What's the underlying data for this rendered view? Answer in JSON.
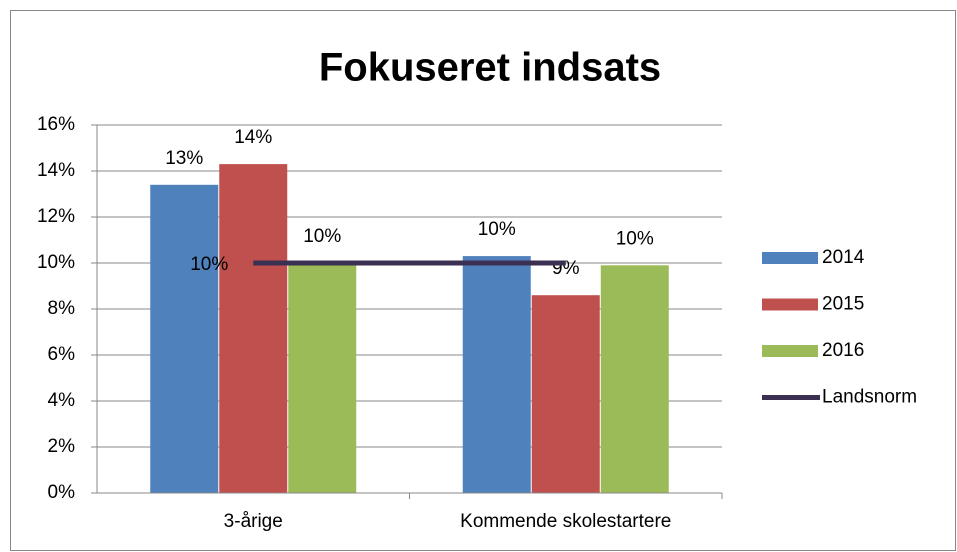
{
  "chart_data": {
    "type": "bar",
    "title": "Fokuseret indsats",
    "categories": [
      "3-årige",
      "Kommende skolestartere"
    ],
    "series": [
      {
        "name": "2014",
        "color": "#4f81bd",
        "values": [
          13.4,
          10.3
        ],
        "value_labels": [
          "13%",
          "10%"
        ]
      },
      {
        "name": "2015",
        "color": "#c0504d",
        "values": [
          14.3,
          8.6
        ],
        "value_labels": [
          "14%",
          "9%"
        ]
      },
      {
        "name": "2016",
        "color": "#9bbb59",
        "values": [
          10.0,
          9.9
        ],
        "value_labels": [
          "10%",
          "10%"
        ]
      },
      {
        "name": "Landsnorm",
        "type": "line",
        "color": "#3b2f52",
        "values": [
          10,
          10
        ],
        "value_labels": [
          "10%",
          null
        ]
      }
    ],
    "ylim": [
      0,
      16
    ],
    "yticks": [
      {
        "value": 0,
        "label": "0%"
      },
      {
        "value": 2,
        "label": "2%"
      },
      {
        "value": 4,
        "label": "4%"
      },
      {
        "value": 6,
        "label": "6%"
      },
      {
        "value": 8,
        "label": "8%"
      },
      {
        "value": 10,
        "label": "10%"
      },
      {
        "value": 12,
        "label": "12%"
      },
      {
        "value": 14,
        "label": "14%"
      },
      {
        "value": 16,
        "label": "16%"
      }
    ],
    "grid": true,
    "legend": "right"
  }
}
